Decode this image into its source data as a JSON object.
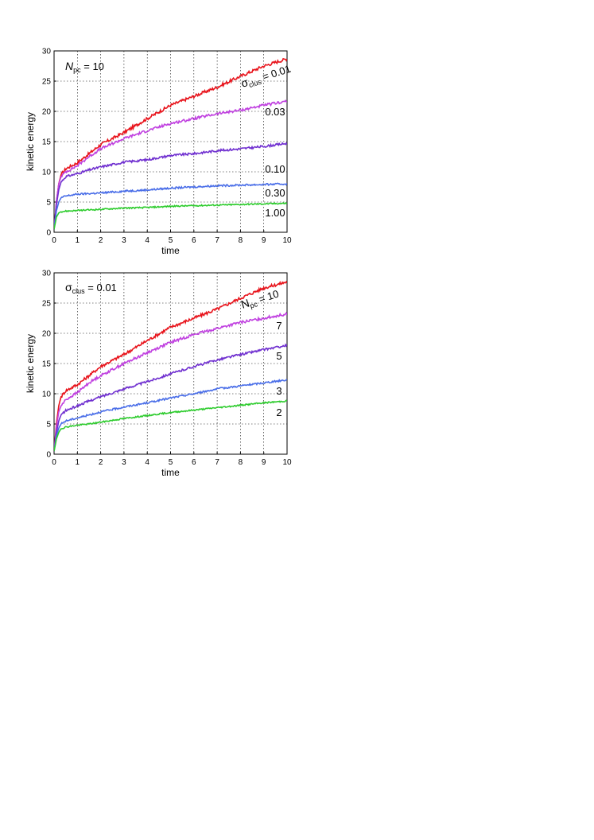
{
  "chart_data": [
    {
      "type": "line",
      "xlabel": "time",
      "ylabel": "kinetic energy",
      "xlim": [
        0,
        10
      ],
      "ylim": [
        0,
        30
      ],
      "xticks": [
        "0",
        "1",
        "2",
        "3",
        "4",
        "5",
        "6",
        "7",
        "8",
        "9",
        "10"
      ],
      "yticks": [
        "0",
        "5",
        "10",
        "15",
        "20",
        "25",
        "30"
      ],
      "grid": true,
      "annotation": {
        "main": "N",
        "sub": "pc",
        "rest": " = 10"
      },
      "series_header": {
        "main": "σ",
        "sub": "clus",
        "rest": " = 0.01"
      },
      "series": [
        {
          "label": "0.01",
          "color": "#e8141c",
          "x": [
            0,
            0.1,
            0.2,
            0.3,
            0.5,
            1,
            1.5,
            2,
            3,
            4,
            5,
            6,
            7,
            8,
            9,
            10
          ],
          "y": [
            0.5,
            5,
            8,
            9.5,
            10.5,
            11.5,
            13,
            14.5,
            16.5,
            18.8,
            21,
            22.5,
            24,
            25.8,
            27.5,
            28.7
          ]
        },
        {
          "label": "0.03",
          "color": "#c040e0",
          "x": [
            0,
            0.1,
            0.2,
            0.3,
            0.5,
            1,
            1.5,
            2,
            3,
            4,
            5,
            6,
            7,
            8,
            9,
            10
          ],
          "y": [
            0.5,
            5,
            8,
            9.2,
            10,
            11,
            12.5,
            13.8,
            15.5,
            16.8,
            18,
            18.8,
            19.6,
            20.2,
            21,
            21.7
          ]
        },
        {
          "label": "0.10",
          "color": "#7030d0",
          "x": [
            0,
            0.1,
            0.2,
            0.3,
            0.5,
            1,
            1.5,
            2,
            3,
            4,
            5,
            6,
            7,
            8,
            9,
            10
          ],
          "y": [
            0.5,
            4.5,
            7,
            8.3,
            9.2,
            9.7,
            10.3,
            10.8,
            11.6,
            12,
            12.7,
            13,
            13.5,
            13.8,
            14.2,
            14.7
          ]
        },
        {
          "label": "0.30",
          "color": "#4a6ee8",
          "x": [
            0,
            0.1,
            0.2,
            0.3,
            0.5,
            1,
            1.5,
            2,
            3,
            4,
            5,
            6,
            7,
            8,
            9,
            10
          ],
          "y": [
            0.5,
            3.5,
            5,
            5.7,
            6,
            6.3,
            6.4,
            6.5,
            6.8,
            7,
            7.3,
            7.5,
            7.7,
            7.8,
            7.9,
            8
          ]
        },
        {
          "label": "1.00",
          "color": "#2ecc2e",
          "x": [
            0,
            0.1,
            0.2,
            0.3,
            0.5,
            1,
            1.5,
            2,
            3,
            4,
            5,
            6,
            7,
            8,
            9,
            10
          ],
          "y": [
            0.5,
            2.5,
            3.2,
            3.4,
            3.5,
            3.6,
            3.7,
            3.8,
            4,
            4.1,
            4.3,
            4.4,
            4.5,
            4.6,
            4.7,
            4.8
          ]
        }
      ]
    },
    {
      "type": "line",
      "xlabel": "time",
      "ylabel": "kinetic energy",
      "xlim": [
        0,
        10
      ],
      "ylim": [
        0,
        30
      ],
      "xticks": [
        "0",
        "1",
        "2",
        "3",
        "4",
        "5",
        "6",
        "7",
        "8",
        "9",
        "10"
      ],
      "yticks": [
        "0",
        "5",
        "10",
        "15",
        "20",
        "25",
        "30"
      ],
      "grid": true,
      "annotation": {
        "main": "σ",
        "sub": "clus",
        "rest": " = 0.01"
      },
      "series_header": {
        "main": "N",
        "sub": "pc",
        "rest": " = 10"
      },
      "series": [
        {
          "label": "10",
          "color": "#e8141c",
          "x": [
            0,
            0.1,
            0.2,
            0.3,
            0.5,
            1,
            1.5,
            2,
            3,
            4,
            5,
            6,
            7,
            8,
            9,
            10
          ],
          "y": [
            0.5,
            5,
            8,
            9.5,
            10.5,
            11.5,
            13,
            14.5,
            16.5,
            18.8,
            21,
            22.5,
            24,
            25.8,
            27.5,
            28.5
          ]
        },
        {
          "label": "7",
          "color": "#c040e0",
          "x": [
            0,
            0.1,
            0.2,
            0.3,
            0.5,
            1,
            1.5,
            2,
            3,
            4,
            5,
            6,
            7,
            8,
            9,
            10
          ],
          "y": [
            0.5,
            4.5,
            7,
            8,
            9,
            10.2,
            11.8,
            13,
            15,
            16.8,
            18.5,
            19.8,
            20.8,
            21.8,
            22.5,
            23.2
          ]
        },
        {
          "label": "5",
          "color": "#7030d0",
          "x": [
            0,
            0.1,
            0.2,
            0.3,
            0.5,
            1,
            1.5,
            2,
            3,
            4,
            5,
            6,
            7,
            8,
            9,
            10
          ],
          "y": [
            0.5,
            3.5,
            5.5,
            6.5,
            7.2,
            8,
            8.8,
            9.5,
            10.8,
            12,
            13.3,
            14.5,
            15.6,
            16.5,
            17.3,
            18
          ]
        },
        {
          "label": "3",
          "color": "#4a6ee8",
          "x": [
            0,
            0.1,
            0.2,
            0.3,
            0.5,
            1,
            1.5,
            2,
            3,
            4,
            5,
            6,
            7,
            8,
            9,
            10
          ],
          "y": [
            0.5,
            3,
            4.3,
            5,
            5.5,
            6,
            6.5,
            7,
            7.8,
            8.5,
            9.3,
            10,
            10.8,
            11.3,
            11.8,
            12.3
          ]
        },
        {
          "label": "2",
          "color": "#2ecc2e",
          "x": [
            0,
            0.1,
            0.2,
            0.3,
            0.5,
            1,
            1.5,
            2,
            3,
            4,
            5,
            6,
            7,
            8,
            9,
            10
          ],
          "y": [
            0.5,
            2.5,
            3.6,
            4.2,
            4.5,
            4.8,
            5,
            5.3,
            5.9,
            6.4,
            6.9,
            7.3,
            7.7,
            8.1,
            8.5,
            8.8
          ]
        }
      ]
    }
  ]
}
